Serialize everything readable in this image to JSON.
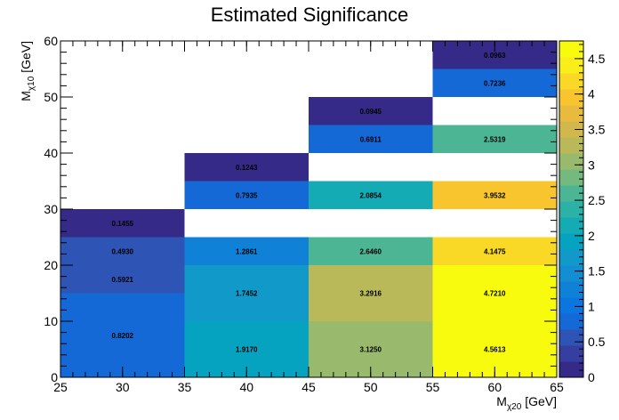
{
  "chart_data": {
    "type": "heatmap",
    "title": "Estimated Significance",
    "xlabel": {
      "main": "M",
      "sub": "χ20",
      "unit": " [GeV]"
    },
    "ylabel": {
      "main": "M",
      "sub": "χ10",
      "unit": " [GeV]"
    },
    "xlim": [
      25,
      65
    ],
    "ylim": [
      0,
      60
    ],
    "zlim": [
      0,
      4.75
    ],
    "x_ticks": [
      25,
      30,
      35,
      40,
      45,
      50,
      55,
      60,
      65
    ],
    "y_ticks": [
      0,
      10,
      20,
      30,
      40,
      50,
      60
    ],
    "z_ticks": [
      "0",
      "0.5",
      "1",
      "1.5",
      "2",
      "2.5",
      "3",
      "3.5",
      "4",
      "4.5"
    ],
    "z_tick_values": [
      0,
      0.5,
      1,
      1.5,
      2,
      2.5,
      3,
      3.5,
      4,
      4.5
    ],
    "palette": [
      "#352a87",
      "#363ea0",
      "#2e54b6",
      "#1469d6",
      "#0b76e0",
      "#0f82d8",
      "#148ed2",
      "#1099c9",
      "#06a3c0",
      "#15abb4",
      "#2bb1a5",
      "#4cb593",
      "#74b97e",
      "#99ba6c",
      "#b9b95a",
      "#d2b84c",
      "#e8bb3f",
      "#f8c52f",
      "#f9d926",
      "#f9ee19",
      "#f9fb0e"
    ],
    "cells": [
      {
        "x0": 25,
        "x1": 35,
        "y0": 0,
        "y1": 15,
        "value": 0.8202,
        "label": "0.8202"
      },
      {
        "x0": 25,
        "x1": 35,
        "y0": 15,
        "y1": 20,
        "value": 0.5921,
        "label": "0.5921"
      },
      {
        "x0": 25,
        "x1": 35,
        "y0": 20,
        "y1": 25,
        "value": 0.493,
        "label": "0.4930"
      },
      {
        "x0": 25,
        "x1": 35,
        "y0": 25,
        "y1": 30,
        "value": 0.1455,
        "label": "0.1455"
      },
      {
        "x0": 35,
        "x1": 45,
        "y0": 0,
        "y1": 10,
        "value": 1.917,
        "label": "1.9170"
      },
      {
        "x0": 35,
        "x1": 45,
        "y0": 10,
        "y1": 20,
        "value": 1.7452,
        "label": "1.7452"
      },
      {
        "x0": 35,
        "x1": 45,
        "y0": 20,
        "y1": 25,
        "value": 1.2861,
        "label": "1.2861"
      },
      {
        "x0": 35,
        "x1": 45,
        "y0": 30,
        "y1": 35,
        "value": 0.7935,
        "label": "0.7935"
      },
      {
        "x0": 35,
        "x1": 45,
        "y0": 35,
        "y1": 40,
        "value": 0.1243,
        "label": "0.1243"
      },
      {
        "x0": 45,
        "x1": 55,
        "y0": 0,
        "y1": 10,
        "value": 3.125,
        "label": "3.1250"
      },
      {
        "x0": 45,
        "x1": 55,
        "y0": 10,
        "y1": 20,
        "value": 3.2916,
        "label": "3.2916"
      },
      {
        "x0": 45,
        "x1": 55,
        "y0": 20,
        "y1": 25,
        "value": 2.646,
        "label": "2.6460"
      },
      {
        "x0": 45,
        "x1": 55,
        "y0": 30,
        "y1": 35,
        "value": 2.0854,
        "label": "2.0854"
      },
      {
        "x0": 45,
        "x1": 55,
        "y0": 40,
        "y1": 45,
        "value": 0.6911,
        "label": "0.6911"
      },
      {
        "x0": 45,
        "x1": 55,
        "y0": 45,
        "y1": 50,
        "value": 0.0945,
        "label": "0.0945"
      },
      {
        "x0": 55,
        "x1": 65,
        "y0": 0,
        "y1": 10,
        "value": 4.5613,
        "label": "4.5613"
      },
      {
        "x0": 55,
        "x1": 65,
        "y0": 10,
        "y1": 20,
        "value": 4.721,
        "label": "4.7210"
      },
      {
        "x0": 55,
        "x1": 65,
        "y0": 20,
        "y1": 25,
        "value": 4.1475,
        "label": "4.1475"
      },
      {
        "x0": 55,
        "x1": 65,
        "y0": 30,
        "y1": 35,
        "value": 3.9532,
        "label": "3.9532"
      },
      {
        "x0": 55,
        "x1": 65,
        "y0": 40,
        "y1": 45,
        "value": 2.5319,
        "label": "2.5319"
      },
      {
        "x0": 55,
        "x1": 65,
        "y0": 50,
        "y1": 55,
        "value": 0.7236,
        "label": "0.7236"
      },
      {
        "x0": 55,
        "x1": 65,
        "y0": 55,
        "y1": 60,
        "value": 0.0963,
        "label": "0.0963"
      }
    ],
    "grid": false,
    "colorbar": "right"
  }
}
